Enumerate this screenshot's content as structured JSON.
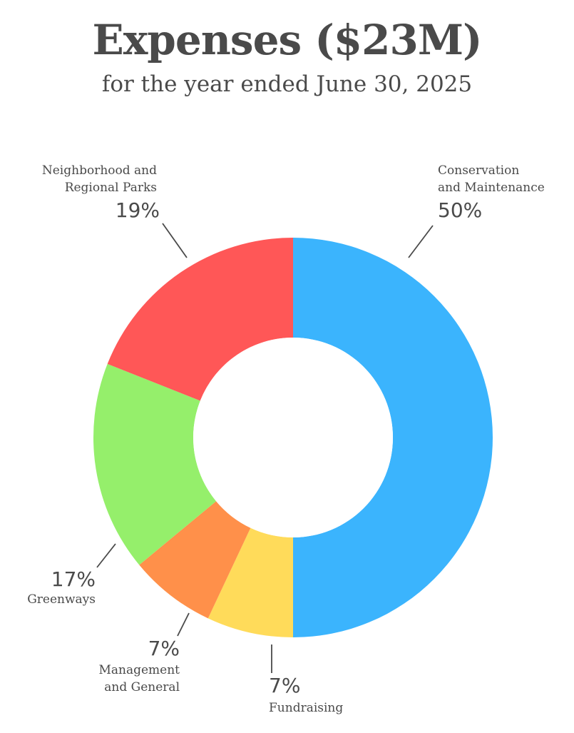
{
  "chart_data": {
    "type": "pie",
    "title": "Expenses ($23M)",
    "subtitle": "for the year ended June 30, 2025",
    "donut": true,
    "slices": [
      {
        "label_lines": [
          "Conservation",
          "and Maintenance"
        ],
        "value": 50,
        "value_label": "50%",
        "color": "#3bb4fd"
      },
      {
        "label_lines": [
          "Fundraising"
        ],
        "value": 7,
        "value_label": "7%",
        "color": "#ffdb5a"
      },
      {
        "label_lines": [
          "Management",
          "and General"
        ],
        "value": 7,
        "value_label": "7%",
        "color": "#ff904a"
      },
      {
        "label_lines": [
          "Greenways"
        ],
        "value": 17,
        "value_label": "17%",
        "color": "#95ef6b"
      },
      {
        "label_lines": [
          "Neighborhood and",
          "Regional Parks"
        ],
        "value": 19,
        "value_label": "19%",
        "color": "#ff5757"
      }
    ]
  }
}
